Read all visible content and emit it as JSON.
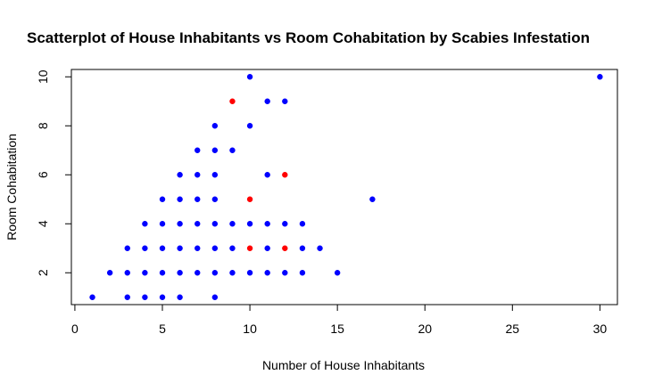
{
  "chart_data": {
    "type": "scatter",
    "title": "Scatterplot of House Inhabitants vs Room Cohabitation by Scabies Infestation",
    "xlabel": "Number of House Inhabitants",
    "ylabel": "Room Cohabitation",
    "xlim": [
      -0.2,
      31.0
    ],
    "ylim": [
      0.7,
      10.3
    ],
    "xticks": [
      0,
      5,
      10,
      15,
      20,
      25,
      30
    ],
    "yticks": [
      2,
      4,
      6,
      8,
      10
    ],
    "grid": false,
    "legend": "none",
    "colors": {
      "blue": "#0000ff",
      "red": "#ff0000"
    },
    "series": [
      {
        "color": "#0000ff",
        "points": [
          [
            1,
            1
          ],
          [
            3,
            1
          ],
          [
            4,
            1
          ],
          [
            5,
            1
          ],
          [
            6,
            1
          ],
          [
            8,
            1
          ],
          [
            2,
            2
          ],
          [
            3,
            2
          ],
          [
            4,
            2
          ],
          [
            5,
            2
          ],
          [
            6,
            2
          ],
          [
            7,
            2
          ],
          [
            8,
            2
          ],
          [
            9,
            2
          ],
          [
            10,
            2
          ],
          [
            11,
            2
          ],
          [
            12,
            2
          ],
          [
            13,
            2
          ],
          [
            15,
            2
          ],
          [
            3,
            3
          ],
          [
            4,
            3
          ],
          [
            5,
            3
          ],
          [
            6,
            3
          ],
          [
            7,
            3
          ],
          [
            8,
            3
          ],
          [
            9,
            3
          ],
          [
            11,
            3
          ],
          [
            13,
            3
          ],
          [
            14,
            3
          ],
          [
            4,
            4
          ],
          [
            5,
            4
          ],
          [
            6,
            4
          ],
          [
            7,
            4
          ],
          [
            8,
            4
          ],
          [
            9,
            4
          ],
          [
            10,
            4
          ],
          [
            11,
            4
          ],
          [
            12,
            4
          ],
          [
            13,
            4
          ],
          [
            5,
            5
          ],
          [
            6,
            5
          ],
          [
            7,
            5
          ],
          [
            8,
            5
          ],
          [
            17,
            5
          ],
          [
            6,
            6
          ],
          [
            7,
            6
          ],
          [
            8,
            6
          ],
          [
            11,
            6
          ],
          [
            7,
            7
          ],
          [
            8,
            7
          ],
          [
            9,
            7
          ],
          [
            8,
            8
          ],
          [
            10,
            8
          ],
          [
            11,
            9
          ],
          [
            12,
            9
          ],
          [
            10,
            10
          ],
          [
            30,
            10
          ]
        ]
      },
      {
        "color": "#ff0000",
        "points": [
          [
            9,
            9
          ],
          [
            10,
            5
          ],
          [
            12,
            6
          ],
          [
            10,
            3
          ],
          [
            12,
            3
          ]
        ]
      }
    ]
  }
}
